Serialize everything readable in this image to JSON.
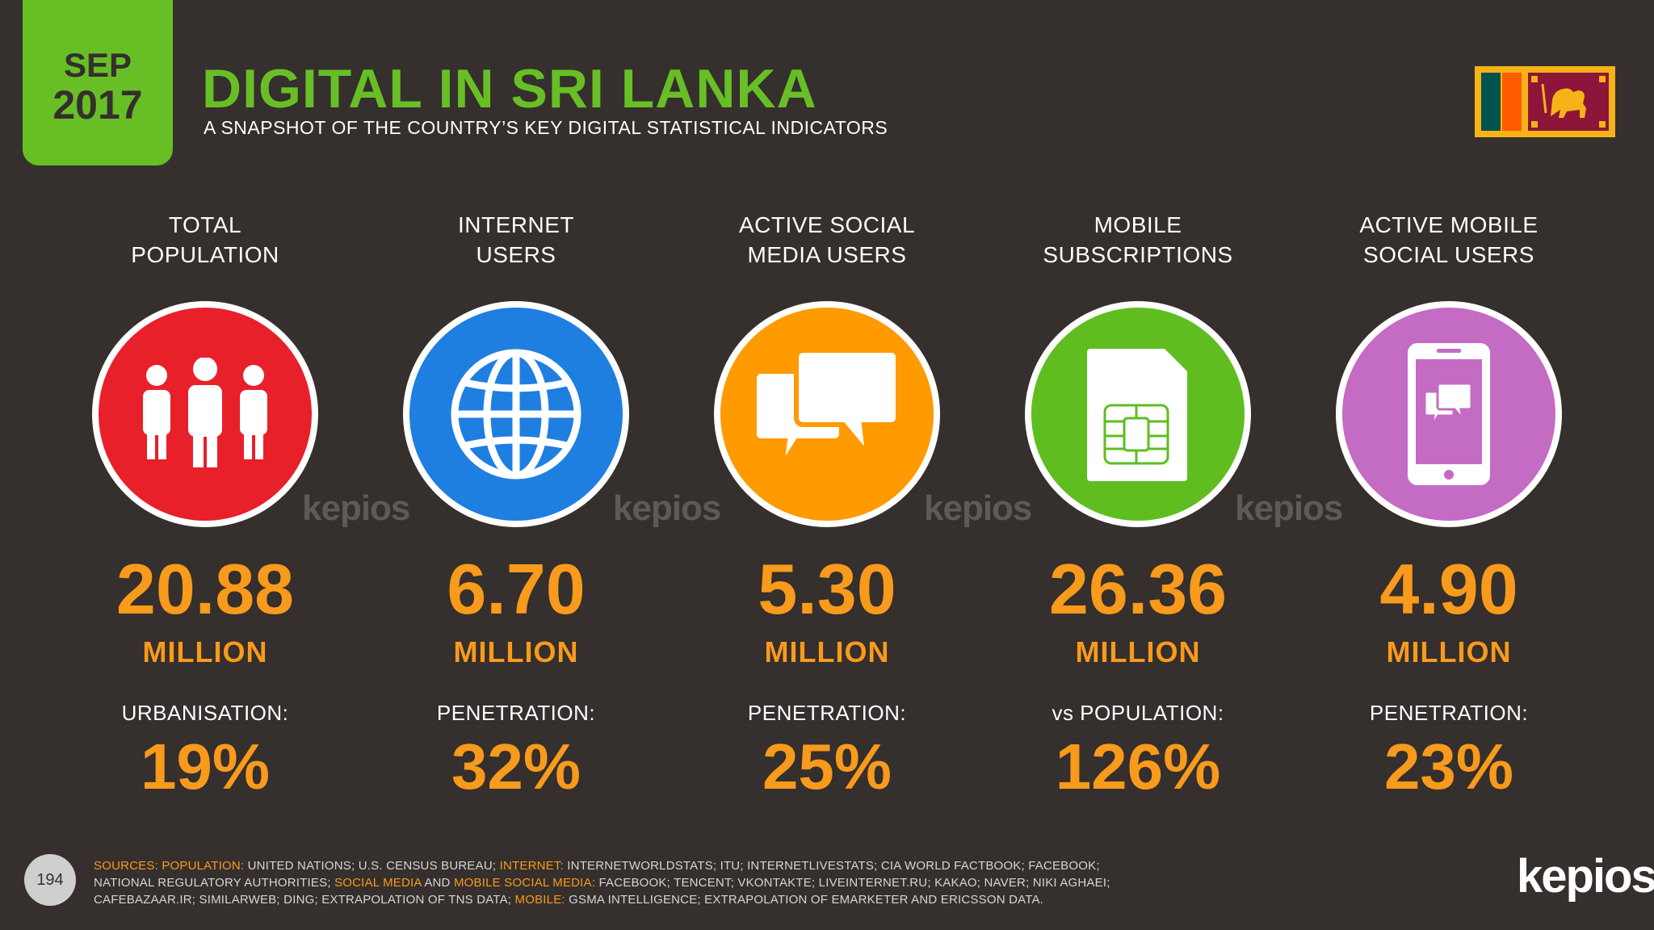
{
  "badge": {
    "month": "SEP",
    "year": "2017"
  },
  "title": "DIGITAL IN SRI LANKA",
  "subtitle": "A SNAPSHOT OF THE COUNTRY’S KEY DIGITAL STATISTICAL INDICATORS",
  "watermark": "kepios",
  "stats": [
    {
      "head1": "TOTAL",
      "head2": "POPULATION",
      "value": "20.88",
      "unit": "MILLION",
      "sublabel": "URBANISATION:",
      "pct": "19%",
      "color": "#e8202a",
      "icon": "people-icon"
    },
    {
      "head1": "INTERNET",
      "head2": "USERS",
      "value": "6.70",
      "unit": "MILLION",
      "sublabel": "PENETRATION:",
      "pct": "32%",
      "color": "#1f7fe0",
      "icon": "globe-icon"
    },
    {
      "head1": "ACTIVE SOCIAL",
      "head2": "MEDIA USERS",
      "value": "5.30",
      "unit": "MILLION",
      "sublabel": "PENETRATION:",
      "pct": "25%",
      "color": "#ff9a00",
      "icon": "chat-bubbles-icon"
    },
    {
      "head1": "MOBILE",
      "head2": "SUBSCRIPTIONS",
      "value": "26.36",
      "unit": "MILLION",
      "sublabel": "vs POPULATION:",
      "pct": "126%",
      "color": "#5fbd20",
      "icon": "sim-card-icon"
    },
    {
      "head1": "ACTIVE MOBILE",
      "head2": "SOCIAL USERS",
      "value": "4.90",
      "unit": "MILLION",
      "sublabel": "PENETRATION:",
      "pct": "23%",
      "color": "#c46bc4",
      "icon": "smartphone-chat-icon"
    }
  ],
  "footer": {
    "page_number": "194",
    "logo": "kepios",
    "sources": {
      "s1": "SOURCES:",
      "s2": "POPULATION:",
      "s3": " UNITED NATIONS; U.S. CENSUS BUREAU; ",
      "s4": "INTERNET:",
      "s5": " INTERNETWORLDSTATS; ITU; INTERNETLIVESTATS; CIA WORLD FACTBOOK; FACEBOOK;",
      "s6": "NATIONAL REGULATORY AUTHORITIES; ",
      "s7": "SOCIAL MEDIA",
      "s8": " AND ",
      "s9": "MOBILE SOCIAL MEDIA:",
      "s10": " FACEBOOK; TENCENT; VKONTAKTE; LIVEINTERNET.RU; KAKAO; NAVER; NIKI AGHAEI;",
      "s11": "CAFEBAZAAR.IR; SIMILARWEB; DING; EXTRAPOLATION OF TNS DATA; ",
      "s12": "MOBILE:",
      "s13": " GSMA INTELLIGENCE; EXTRAPOLATION OF EMARKETER AND ERICSSON DATA."
    }
  }
}
